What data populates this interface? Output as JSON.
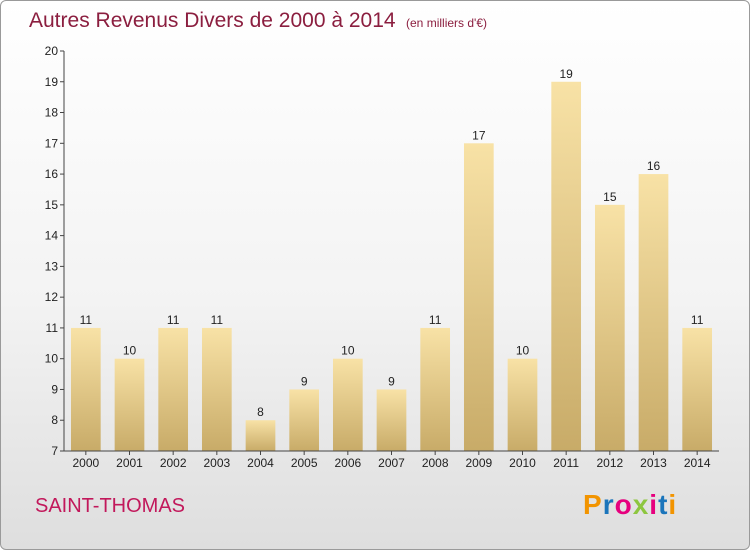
{
  "title": "Autres Revenus Divers de 2000 à 2014",
  "unit_note": "(en milliers d'€)",
  "commune": "SAINT-THOMAS",
  "logo": {
    "text": "Proxiti",
    "letters": [
      "P",
      "r",
      "o",
      "x",
      "i",
      "t",
      "i"
    ],
    "colors": [
      "#f29400",
      "#1b75bb",
      "#e6007e",
      "#8dc63f",
      "#e6007e",
      "#1b75bb",
      "#f29400"
    ]
  },
  "colors": {
    "bar_light": "#f8e2a6",
    "bar_dark": "#c8ab68",
    "title": "#8b1e3f",
    "commune": "#c2185b"
  },
  "chart_data": {
    "type": "bar",
    "categories": [
      "2000",
      "2001",
      "2002",
      "2003",
      "2004",
      "2005",
      "2006",
      "2007",
      "2008",
      "2009",
      "2010",
      "2011",
      "2012",
      "2013",
      "2014"
    ],
    "values": [
      11,
      10,
      11,
      11,
      8,
      9,
      10,
      9,
      11,
      17,
      10,
      19,
      15,
      16,
      11
    ],
    "title": "Autres Revenus Divers de 2000 à 2014",
    "xlabel": "",
    "ylabel": "",
    "ylim": [
      7,
      20
    ],
    "yticks": [
      7,
      8,
      9,
      10,
      11,
      12,
      13,
      14,
      15,
      16,
      17,
      18,
      19,
      20
    ],
    "grid": false,
    "legend": "none"
  }
}
